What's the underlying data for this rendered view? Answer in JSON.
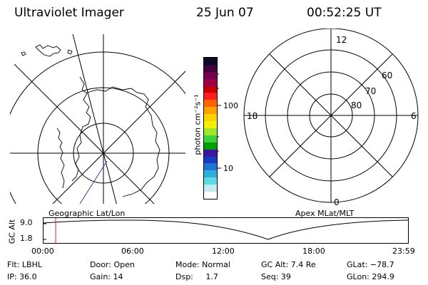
{
  "header": {
    "title": "Ultraviolet Imager",
    "date": "25 Jun 07",
    "time": "00:52:25 UT"
  },
  "left_panel": {
    "label": "Geographic Lat/Lon"
  },
  "right_panel": {
    "label": "Apex MLat/MLT",
    "mlt_labels": [
      "12",
      "18",
      "6",
      "0"
    ],
    "mlat_labels": [
      "60",
      "70",
      "80"
    ]
  },
  "colorbar": {
    "unit_label": "photon cm⁻²s⁻¹",
    "tick_labels": [
      "100",
      "10"
    ],
    "colors": [
      "#ffffff",
      "#c8e8f0",
      "#5fd8e0",
      "#2bb0d8",
      "#1a78d0",
      "#1a3cc0",
      "#3a18a0",
      "#00a000",
      "#3cd23c",
      "#a0e628",
      "#f0f000",
      "#ffd200",
      "#ffa000",
      "#ff6400",
      "#ff1e1e",
      "#c80000",
      "#a00040",
      "#780050",
      "#46003c",
      "#0a0a28"
    ]
  },
  "altitude_plot": {
    "ylabel": "GC Alt",
    "ytick_labels": [
      "9.0",
      "1.8"
    ],
    "xtick_labels": [
      "00:00",
      "06:00",
      "12:00",
      "18:00",
      "23:59"
    ],
    "current_marker_color": "#e02020"
  },
  "status": {
    "flt": "Flt: LBHL",
    "ip": "IP: 36.0",
    "door": "Door: Open",
    "gain": "Gain: 14",
    "mode": "Mode: Normal",
    "dsp": "Dsp:     1.7",
    "gcalt": "GC Alt: 7.4 Re",
    "seq": "Seq: 39",
    "glat": "GLat: −78.7",
    "glon": "GLon: 294.9"
  }
}
